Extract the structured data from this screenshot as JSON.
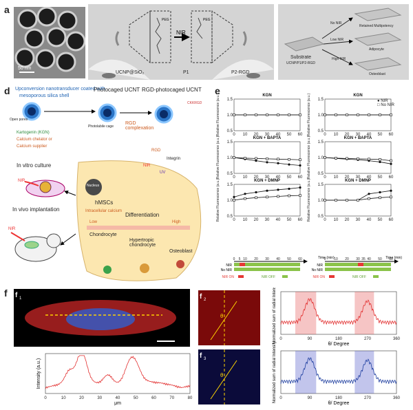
{
  "panels": {
    "a": {
      "letter": "a",
      "scalebar": "50 nm"
    },
    "b": {
      "letter": "b",
      "nir": "NIR",
      "legend": [
        "UCNP@SiO₂",
        "P1",
        "P2-RGD"
      ],
      "peg": "PEG"
    },
    "c": {
      "letter": "c",
      "substrate": "Substrate",
      "substrate_sub": "UCNP/P1/P2-RGD",
      "arrows": [
        "No NIR",
        "Low NIR",
        "High NIR"
      ],
      "outcomes": [
        "Retained Multipotency",
        "Adipocyte",
        "Osteoblast"
      ]
    },
    "d": {
      "letter": "d",
      "top_labels": [
        "Upconversion nanotransducer coated with",
        "mesoporous silica shell",
        "Photocaged UCNT",
        "RGD-photocaged UCNT"
      ],
      "open_pores": "Open pores",
      "photolabile": "Photolabile cage",
      "rgd_complex": "RGD complexation",
      "legend": [
        "Kartogenin (KGN)",
        "Calcium chelator or",
        "Calcium supplier"
      ],
      "cell": {
        "rgd": "RGD",
        "integrin": "Integrin",
        "nir": "NIR",
        "uv": "UV",
        "nucleus": "Nucleus",
        "hmscs": "hMSCs",
        "intracellular": "Intracellular calcium",
        "low": "Low",
        "high": "High",
        "differentiation": "Differentiation",
        "chondrocyte": "Chondrocyte",
        "hypertropic": "Hypertropic chondrocyte",
        "osteoblast": "Osteoblast"
      },
      "side": [
        "In vitro culture",
        "In vivo implantation",
        "NIR",
        "NIR"
      ],
      "peptide": "CKKRGD"
    },
    "e": {
      "letter": "e",
      "legend": [
        "NIR",
        "No NIR"
      ],
      "titles": [
        "KGN",
        "KGN",
        "KGN + BAPTA",
        "KGN + BAPTA",
        "KGN + DMNP",
        "KGN + DMNP"
      ],
      "ylabel": "Relative Fluorescence (a.u.)",
      "xticks": [
        "0",
        "10",
        "20",
        "30",
        "40",
        "50",
        "60"
      ],
      "yticks": [
        "0.5",
        "1.0",
        "1.5"
      ],
      "time_label": "Time (min)",
      "timeline_ticks_left": [
        "0",
        "5",
        "10",
        "20",
        "30",
        "40",
        "50",
        "60"
      ],
      "timeline_ticks_right": [
        "0",
        "10",
        "20",
        "30",
        "35",
        "40",
        "50",
        "60"
      ],
      "row_labels": [
        "NIR",
        "No NIR"
      ],
      "nir_on": "NIR ON",
      "nir_off": "NIR OFF"
    },
    "f": {
      "letter": "f",
      "sub": [
        "f",
        "f",
        "f"
      ],
      "subnums": [
        "1",
        "2",
        "3"
      ],
      "theta": "θ",
      "f1_ylabel": "Intensity (a.u.)",
      "f1_xlabel": "μm",
      "f1_xticks": [
        "0",
        "10",
        "20",
        "30",
        "40",
        "50",
        "60",
        "70",
        "80"
      ],
      "f2_ylabel": "Normalized sum of radial Intensity",
      "f_xlabel": "θ/ Degree",
      "f_xticks": [
        "0",
        "90",
        "180",
        "270",
        "360"
      ]
    }
  },
  "chart_data": [
    {
      "type": "line",
      "title": "KGN",
      "series": [
        {
          "name": "NIR",
          "values": [
            1.0,
            1.0,
            1.0,
            1.0,
            1.0,
            1.0,
            1.0
          ]
        },
        {
          "name": "No NIR",
          "values": [
            1.0,
            1.0,
            1.0,
            1.0,
            1.0,
            1.0,
            1.0
          ]
        }
      ],
      "x": [
        0,
        10,
        20,
        30,
        40,
        50,
        60
      ],
      "ylim": [
        0.5,
        1.5
      ],
      "xlabel": "Time (min)"
    },
    {
      "type": "line",
      "title": "KGN",
      "series": [
        {
          "name": "NIR",
          "values": [
            1.0,
            1.0,
            1.0,
            1.0,
            1.0,
            1.0,
            1.0
          ]
        },
        {
          "name": "No NIR",
          "values": [
            1.0,
            1.0,
            1.0,
            1.0,
            1.0,
            1.0,
            1.0
          ]
        }
      ],
      "x": [
        0,
        10,
        20,
        30,
        40,
        50,
        60
      ],
      "ylim": [
        0.5,
        1.5
      ]
    },
    {
      "type": "line",
      "title": "KGN + BAPTA",
      "series": [
        {
          "name": "NIR",
          "values": [
            1.0,
            0.95,
            0.9,
            0.85,
            0.82,
            0.78,
            0.75
          ]
        },
        {
          "name": "No NIR",
          "values": [
            1.0,
            0.98,
            0.97,
            0.96,
            0.95,
            0.94,
            0.93
          ]
        }
      ],
      "x": [
        0,
        10,
        20,
        30,
        40,
        50,
        60
      ],
      "ylim": [
        0.5,
        1.5
      ]
    },
    {
      "type": "line",
      "title": "KGN + BAPTA",
      "series": [
        {
          "name": "NIR",
          "values": [
            1.0,
            0.97,
            0.95,
            0.93,
            0.9,
            0.86,
            0.8
          ]
        },
        {
          "name": "No NIR",
          "values": [
            1.0,
            0.98,
            0.97,
            0.96,
            0.95,
            0.94,
            0.9
          ]
        }
      ],
      "x": [
        0,
        10,
        20,
        30,
        40,
        50,
        60
      ],
      "ylim": [
        0.5,
        1.5
      ]
    },
    {
      "type": "line",
      "title": "KGN + DMNP",
      "series": [
        {
          "name": "NIR",
          "values": [
            1.1,
            1.2,
            1.25,
            1.3,
            1.33,
            1.36,
            1.4
          ]
        },
        {
          "name": "No NIR",
          "values": [
            1.0,
            1.05,
            1.08,
            1.1,
            1.12,
            1.14,
            1.15
          ]
        }
      ],
      "x": [
        0,
        10,
        20,
        30,
        40,
        50,
        60
      ],
      "ylim": [
        0.5,
        1.5
      ]
    },
    {
      "type": "line",
      "title": "KGN + DMNP",
      "series": [
        {
          "name": "NIR",
          "values": [
            1.0,
            1.0,
            1.0,
            1.0,
            1.2,
            1.25,
            1.3
          ]
        },
        {
          "name": "No NIR",
          "values": [
            1.0,
            1.0,
            1.0,
            1.0,
            1.05,
            1.08,
            1.1
          ]
        }
      ],
      "x": [
        0,
        10,
        20,
        30,
        40,
        50,
        60
      ],
      "ylim": [
        0.5,
        1.5
      ]
    },
    {
      "type": "line",
      "x_range": [
        0,
        80
      ],
      "xlabel": "μm",
      "ylabel": "Intensity (a.u.)",
      "note": "f1 line profile with two main peaks near 20 and 48 μm"
    },
    {
      "type": "line",
      "x_range": [
        0,
        360
      ],
      "xlabel": "θ/ Degree",
      "ylabel": "Normalized sum of radial Intensity",
      "highlight": [
        [
          45,
          110
        ],
        [
          230,
          290
        ]
      ],
      "color": "#d62728"
    },
    {
      "type": "line",
      "x_range": [
        0,
        360
      ],
      "xlabel": "θ/ Degree",
      "ylabel": "Normalized sum of radial Intensity",
      "highlight": [
        [
          45,
          110
        ],
        [
          230,
          290
        ]
      ],
      "color": "#1f3fa0"
    }
  ]
}
